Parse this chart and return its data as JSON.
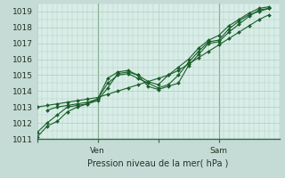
{
  "title": "",
  "xlabel": "Pression niveau de la mer( hPa )",
  "ylim": [
    1011,
    1019.5
  ],
  "xlim": [
    0,
    48
  ],
  "yticks": [
    1011,
    1012,
    1013,
    1014,
    1015,
    1016,
    1017,
    1018,
    1019
  ],
  "xtick_labels": [
    "",
    "Ven",
    "",
    "Sam"
  ],
  "xtick_positions": [
    0,
    12,
    24,
    36
  ],
  "vlines": [
    12,
    36
  ],
  "line_color": "#1a5e2a",
  "lines": [
    [
      0,
      1011.1,
      2,
      1011.8,
      4,
      1012.1,
      6,
      1012.7,
      8,
      1013.0,
      10,
      1013.2,
      12,
      1013.4,
      14,
      1014.2,
      16,
      1015.1,
      18,
      1015.2,
      20,
      1015.0,
      22,
      1014.3,
      24,
      1014.1,
      26,
      1014.3,
      28,
      1014.5,
      30,
      1015.6,
      32,
      1016.3,
      34,
      1017.0,
      36,
      1017.1,
      38,
      1017.7,
      40,
      1018.2,
      42,
      1018.7,
      44,
      1019.1,
      46,
      1019.2
    ],
    [
      0,
      1011.4,
      2,
      1012.0,
      4,
      1012.5,
      6,
      1013.0,
      8,
      1013.1,
      10,
      1013.2,
      12,
      1013.5,
      14,
      1014.5,
      16,
      1015.0,
      18,
      1015.1,
      20,
      1014.8,
      22,
      1014.5,
      24,
      1014.2,
      26,
      1014.4,
      28,
      1015.0,
      30,
      1015.8,
      32,
      1016.5,
      34,
      1017.1,
      36,
      1017.2,
      38,
      1017.9,
      40,
      1018.4,
      42,
      1018.8,
      44,
      1019.0,
      46,
      1019.2
    ],
    [
      2,
      1012.8,
      4,
      1013.0,
      6,
      1013.1,
      8,
      1013.2,
      10,
      1013.3,
      12,
      1013.5,
      14,
      1014.8,
      16,
      1015.2,
      18,
      1015.3,
      20,
      1015.0,
      22,
      1014.6,
      24,
      1014.4,
      26,
      1015.0,
      28,
      1015.5,
      30,
      1016.0,
      32,
      1016.7,
      34,
      1017.2,
      36,
      1017.5,
      38,
      1018.1,
      40,
      1018.5,
      42,
      1018.9,
      44,
      1019.2,
      46,
      1019.3
    ],
    [
      0,
      1013.0,
      2,
      1013.1,
      4,
      1013.2,
      6,
      1013.3,
      8,
      1013.4,
      10,
      1013.5,
      12,
      1013.6,
      14,
      1013.8,
      16,
      1014.0,
      18,
      1014.2,
      20,
      1014.4,
      22,
      1014.6,
      24,
      1014.8,
      26,
      1015.0,
      28,
      1015.3,
      30,
      1015.7,
      32,
      1016.1,
      34,
      1016.5,
      36,
      1016.9,
      38,
      1017.3,
      40,
      1017.7,
      42,
      1018.1,
      44,
      1018.5,
      46,
      1018.8
    ]
  ],
  "marker": "D",
  "markersize": 2.0,
  "linewidth": 0.8,
  "fig_bg": "#c5dbd6",
  "plot_bg": "#d8ede8",
  "grid_color": "#b0ccbb",
  "spine_color": "#336644",
  "tick_color": "#223322",
  "label_fontsize": 7.0,
  "tick_fontsize": 6.5
}
